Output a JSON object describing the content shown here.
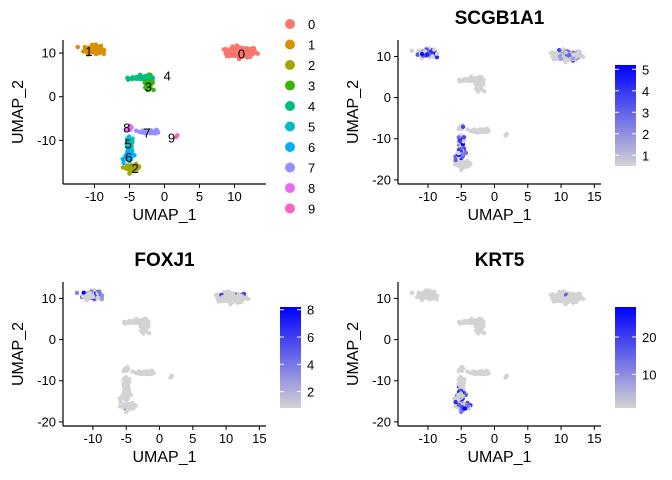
{
  "chart_data": [
    {
      "type": "scatter",
      "variant": "umap-clusters",
      "title": "",
      "xlabel": "UMAP_1",
      "ylabel": "UMAP_2",
      "xlim": [
        -14.5,
        14.5
      ],
      "ylim": [
        -20,
        13
      ],
      "xticks": [
        -10,
        -5,
        0,
        5,
        10
      ],
      "yticks": [
        -10,
        0,
        10
      ],
      "legend": {
        "position": "right",
        "type": "categorical"
      },
      "clusters": [
        {
          "name": "0",
          "color": "#F8766D",
          "center": [
            11.0,
            10.2
          ],
          "spread": [
            2.0,
            1.1
          ],
          "n": 150,
          "label_pos": [
            11.0,
            9.9
          ]
        },
        {
          "name": "1",
          "color": "#D89000",
          "center": [
            -10.3,
            10.8
          ],
          "spread": [
            1.1,
            0.9
          ],
          "n": 90,
          "label_pos": [
            -10.8,
            10.5
          ]
        },
        {
          "name": "2",
          "color": "#A3A500",
          "center": [
            -4.5,
            -16.3
          ],
          "spread": [
            0.9,
            0.7
          ],
          "n": 40,
          "label_pos": [
            -4.2,
            -16.3
          ]
        },
        {
          "name": "3",
          "color": "#39B600",
          "center": [
            -2.3,
            3.4
          ],
          "spread": [
            0.6,
            1.3
          ],
          "n": 40,
          "label_pos": [
            -2.3,
            2.3
          ]
        },
        {
          "name": "4",
          "color": "#00BF7D",
          "center": [
            -3.0,
            4.3
          ],
          "spread": [
            2.0,
            0.4
          ],
          "n": 50,
          "label_pos": [
            0.4,
            4.9
          ]
        },
        {
          "name": "5",
          "color": "#00BFC4",
          "center": [
            -5.0,
            -11.0
          ],
          "spread": [
            0.5,
            1.6
          ],
          "n": 45,
          "label_pos": [
            -5.2,
            -10.7
          ]
        },
        {
          "name": "6",
          "color": "#00B0F6",
          "center": [
            -5.1,
            -13.8
          ],
          "spread": [
            0.6,
            1.0
          ],
          "n": 40,
          "label_pos": [
            -5.1,
            -13.8
          ]
        },
        {
          "name": "7",
          "color": "#9590FF",
          "center": [
            -2.0,
            -8.0
          ],
          "spread": [
            1.3,
            0.4
          ],
          "n": 35,
          "label_pos": [
            -2.5,
            -8.2
          ]
        },
        {
          "name": "8",
          "color": "#E76BF3",
          "center": [
            -5.0,
            -7.2
          ],
          "spread": [
            0.4,
            0.4
          ],
          "n": 10,
          "label_pos": [
            -5.4,
            -7.1
          ]
        },
        {
          "name": "9",
          "color": "#FF62BC",
          "center": [
            1.8,
            -9.0
          ],
          "spread": [
            0.2,
            0.2
          ],
          "n": 3,
          "label_pos": [
            1.0,
            -9.3
          ]
        }
      ]
    },
    {
      "type": "scatter",
      "variant": "feature-plot",
      "title": "SCGB1A1",
      "xlabel": "UMAP_1",
      "ylabel": "UMAP_2",
      "xlim": [
        -14.5,
        16
      ],
      "ylim": [
        -21,
        14
      ],
      "xticks": [
        -10,
        -5,
        0,
        5,
        10,
        15
      ],
      "yticks": [
        -20,
        -10,
        0,
        10
      ],
      "legend": {
        "position": "right",
        "type": "colorbar",
        "low_color": "#D3D3D3",
        "high_color": "#0000FF",
        "range": [
          0.5,
          5.2
        ],
        "ticks": [
          1,
          2,
          3,
          4,
          5
        ]
      },
      "expression_focus": [
        "1",
        "6",
        "5",
        "0"
      ]
    },
    {
      "type": "scatter",
      "variant": "feature-plot",
      "title": "FOXJ1",
      "xlabel": "UMAP_1",
      "ylabel": "UMAP_2",
      "xlim": [
        -14.5,
        16
      ],
      "ylim": [
        -21,
        14
      ],
      "xticks": [
        -10,
        -5,
        0,
        5,
        10,
        15
      ],
      "yticks": [
        -20,
        -10,
        0,
        10
      ],
      "legend": {
        "position": "right",
        "type": "colorbar",
        "low_color": "#D3D3D3",
        "high_color": "#0000FF",
        "range": [
          0.8,
          8.2
        ],
        "ticks": [
          2,
          4,
          6,
          8
        ]
      },
      "expression_focus": [
        "1"
      ]
    },
    {
      "type": "scatter",
      "variant": "feature-plot",
      "title": "KRT5",
      "xlabel": "UMAP_1",
      "ylabel": "UMAP_2",
      "xlim": [
        -14.5,
        16
      ],
      "ylim": [
        -21,
        14
      ],
      "xticks": [
        -10,
        -5,
        0,
        5,
        10,
        15
      ],
      "yticks": [
        -20,
        -10,
        0,
        10
      ],
      "legend": {
        "position": "right",
        "type": "colorbar",
        "low_color": "#D3D3D3",
        "high_color": "#0000FF",
        "range": [
          1,
          28
        ],
        "ticks": [
          10,
          20
        ]
      },
      "expression_focus": [
        "2",
        "6"
      ]
    }
  ]
}
